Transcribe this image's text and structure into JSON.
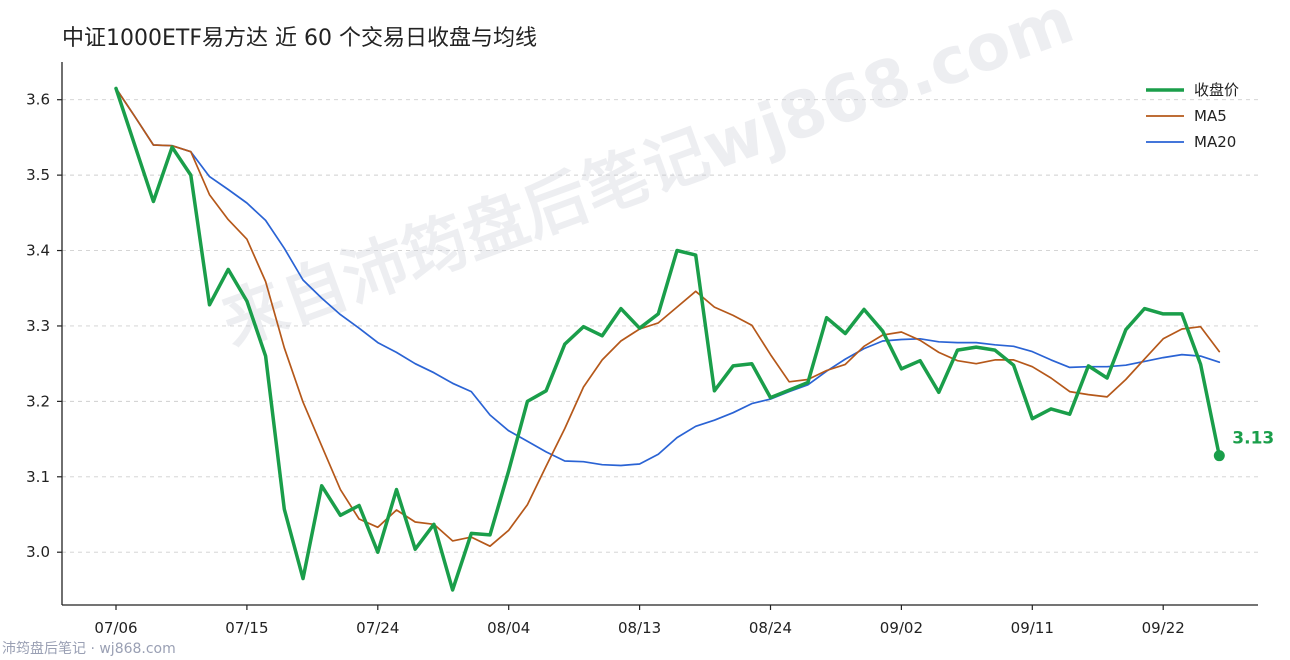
{
  "chart_data": {
    "type": "line",
    "title": "中证1000ETF易方达 近 60 个交易日收盘与均线",
    "x_tick_labels": [
      "07/06",
      "07/15",
      "07/24",
      "08/04",
      "08/13",
      "08/24",
      "09/02",
      "09/11",
      "09/22"
    ],
    "x_tick_index": [
      0,
      7,
      14,
      21,
      28,
      35,
      42,
      49,
      56
    ],
    "ylim": [
      2.93,
      3.65
    ],
    "y_ticks": [
      "3.0",
      "3.1",
      "3.2",
      "3.3",
      "3.4",
      "3.5",
      "3.6"
    ],
    "grid": "horizontal dashed",
    "legend_position": "top-right",
    "series": [
      {
        "name": "收盘价",
        "color": "#1a9e4a",
        "values": [
          3.615,
          3.54,
          3.465,
          3.537,
          3.5,
          3.328,
          3.375,
          3.333,
          3.26,
          3.057,
          2.965,
          3.088,
          3.049,
          3.062,
          3.0,
          3.083,
          3.004,
          3.037,
          2.95,
          3.025,
          3.023,
          3.108,
          3.2,
          3.214,
          3.276,
          3.299,
          3.287,
          3.323,
          3.297,
          3.316,
          3.4,
          3.394,
          3.214,
          3.247,
          3.25,
          3.205,
          3.215,
          3.225,
          3.311,
          3.29,
          3.322,
          3.293,
          3.243,
          3.254,
          3.212,
          3.268,
          3.272,
          3.268,
          3.248,
          3.177,
          3.19,
          3.183,
          3.247,
          3.231,
          3.295,
          3.323,
          3.316,
          3.316,
          3.249,
          3.128
        ]
      },
      {
        "name": "MA5",
        "color": "#b5581a",
        "values": [
          3.615,
          3.578,
          3.54,
          3.539,
          3.531,
          3.474,
          3.441,
          3.415,
          3.359,
          3.271,
          3.199,
          3.141,
          3.083,
          3.044,
          3.033,
          3.056,
          3.04,
          3.037,
          3.015,
          3.02,
          3.008,
          3.029,
          3.063,
          3.114,
          3.164,
          3.219,
          3.255,
          3.28,
          3.296,
          3.304,
          3.325,
          3.346,
          3.325,
          3.314,
          3.301,
          3.262,
          3.226,
          3.229,
          3.241,
          3.249,
          3.273,
          3.288,
          3.292,
          3.281,
          3.265,
          3.254,
          3.25,
          3.255,
          3.255,
          3.246,
          3.231,
          3.213,
          3.209,
          3.206,
          3.229,
          3.256,
          3.283,
          3.296,
          3.299,
          3.266
        ]
      },
      {
        "name": "MA20",
        "color": "#2a63d4",
        "values": [
          3.615,
          3.578,
          3.54,
          3.539,
          3.531,
          3.498,
          3.481,
          3.463,
          3.44,
          3.403,
          3.361,
          3.337,
          3.315,
          3.297,
          3.278,
          3.265,
          3.25,
          3.238,
          3.224,
          3.213,
          3.182,
          3.161,
          3.147,
          3.133,
          3.121,
          3.12,
          3.116,
          3.115,
          3.117,
          3.13,
          3.152,
          3.167,
          3.175,
          3.185,
          3.197,
          3.203,
          3.213,
          3.222,
          3.24,
          3.256,
          3.27,
          3.28,
          3.282,
          3.283,
          3.279,
          3.278,
          3.278,
          3.275,
          3.273,
          3.266,
          3.255,
          3.245,
          3.246,
          3.246,
          3.248,
          3.253,
          3.258,
          3.262,
          3.26,
          3.252
        ]
      }
    ],
    "last_value_label": "3.13"
  },
  "watermark": {
    "center_text": "来自沛筠盘后笔记wj868.com",
    "footer_text": "沛筠盘后笔记 · wj868.com"
  }
}
